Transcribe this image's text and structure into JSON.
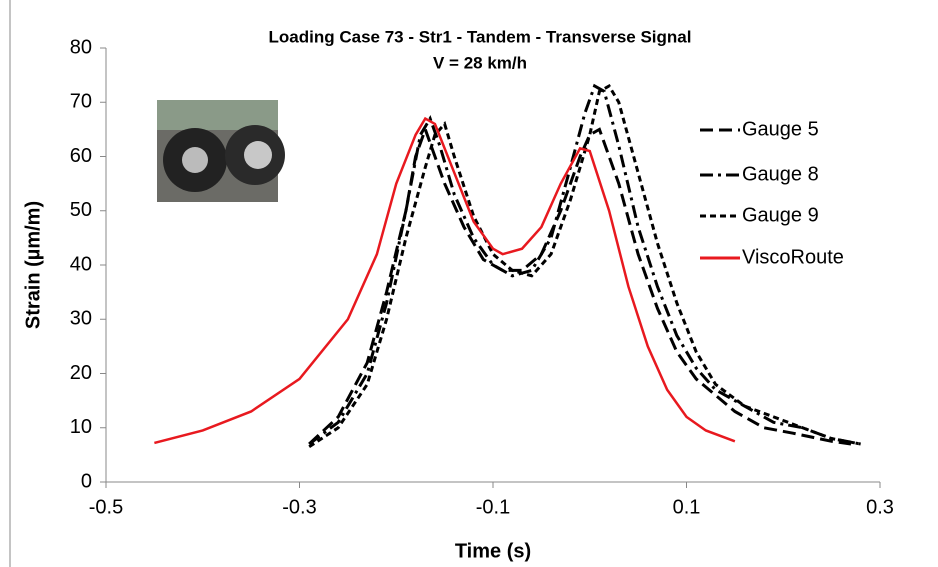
{
  "chart_data": {
    "type": "line",
    "title": "Loading Case 73 - Str1 - Tandem - Transverse Signal",
    "subtitle": "V = 28 km/h",
    "x_label": "Time (s)",
    "y_label": "Strain (µm/m)",
    "xlim": [
      -0.5,
      0.3
    ],
    "xticks": [
      -0.5,
      -0.3,
      -0.1,
      0.1,
      0.3
    ],
    "ylim": [
      0,
      80
    ],
    "yticks": [
      0,
      10,
      20,
      30,
      40,
      50,
      60,
      70,
      80
    ],
    "grid": false,
    "legend": "right",
    "series": [
      {
        "name": "Gauge 5",
        "color": "#000000",
        "dash": "long-dash",
        "x": [
          -0.29,
          -0.26,
          -0.23,
          -0.21,
          -0.19,
          -0.18,
          -0.17,
          -0.16,
          -0.15,
          -0.13,
          -0.11,
          -0.09,
          -0.07,
          -0.05,
          -0.03,
          -0.01,
          0.0,
          0.01,
          0.03,
          0.05,
          0.07,
          0.09,
          0.11,
          0.13,
          0.15,
          0.18,
          0.21,
          0.25,
          0.27
        ],
        "values": [
          7,
          12,
          22,
          35,
          50,
          60,
          65,
          60,
          55,
          47,
          41,
          39,
          39,
          42,
          50,
          60,
          64,
          65,
          55,
          42,
          32,
          24,
          19,
          16,
          13,
          10,
          9,
          7.5,
          7
        ]
      },
      {
        "name": "Gauge 8",
        "color": "#000000",
        "dash": "dash-dot",
        "x": [
          -0.29,
          -0.26,
          -0.23,
          -0.21,
          -0.19,
          -0.175,
          -0.165,
          -0.155,
          -0.14,
          -0.12,
          -0.1,
          -0.08,
          -0.06,
          -0.04,
          -0.02,
          -0.005,
          0.005,
          0.015,
          0.03,
          0.05,
          0.07,
          0.09,
          0.11,
          0.13,
          0.16,
          0.19,
          0.22,
          0.25,
          0.28
        ],
        "values": [
          7,
          11,
          20,
          33,
          50,
          64,
          67,
          62,
          53,
          45,
          40,
          38,
          39,
          45,
          58,
          68,
          73,
          72,
          62,
          47,
          36,
          27,
          21,
          17,
          14,
          11,
          10,
          8,
          7
        ]
      },
      {
        "name": "Gauge 9",
        "color": "#000000",
        "dash": "short-dash",
        "x": [
          -0.29,
          -0.26,
          -0.23,
          -0.21,
          -0.19,
          -0.17,
          -0.16,
          -0.15,
          -0.14,
          -0.12,
          -0.1,
          -0.08,
          -0.06,
          -0.04,
          -0.02,
          0.0,
          0.01,
          0.02,
          0.03,
          0.05,
          0.07,
          0.09,
          0.11,
          0.13,
          0.16,
          0.19,
          0.22,
          0.25,
          0.28
        ],
        "values": [
          6.5,
          10,
          18,
          30,
          45,
          58,
          64,
          66,
          60,
          49,
          42,
          39,
          38,
          42,
          52,
          64,
          72,
          73,
          70,
          57,
          44,
          33,
          24,
          18,
          14,
          12,
          10,
          8,
          7
        ]
      },
      {
        "name": "ViscoRoute",
        "color": "#e8191f",
        "dash": "solid",
        "x": [
          -0.45,
          -0.4,
          -0.35,
          -0.3,
          -0.25,
          -0.22,
          -0.2,
          -0.18,
          -0.17,
          -0.16,
          -0.14,
          -0.12,
          -0.1,
          -0.09,
          -0.07,
          -0.05,
          -0.03,
          -0.01,
          0.0,
          0.02,
          0.04,
          0.06,
          0.08,
          0.1,
          0.12,
          0.15
        ],
        "values": [
          7.2,
          9.5,
          13,
          19,
          30,
          42,
          55,
          64,
          67,
          66,
          57,
          48,
          43,
          42,
          43,
          47,
          55,
          61.5,
          61,
          50,
          36,
          25,
          17,
          12,
          9.5,
          7.5
        ]
      }
    ]
  }
}
